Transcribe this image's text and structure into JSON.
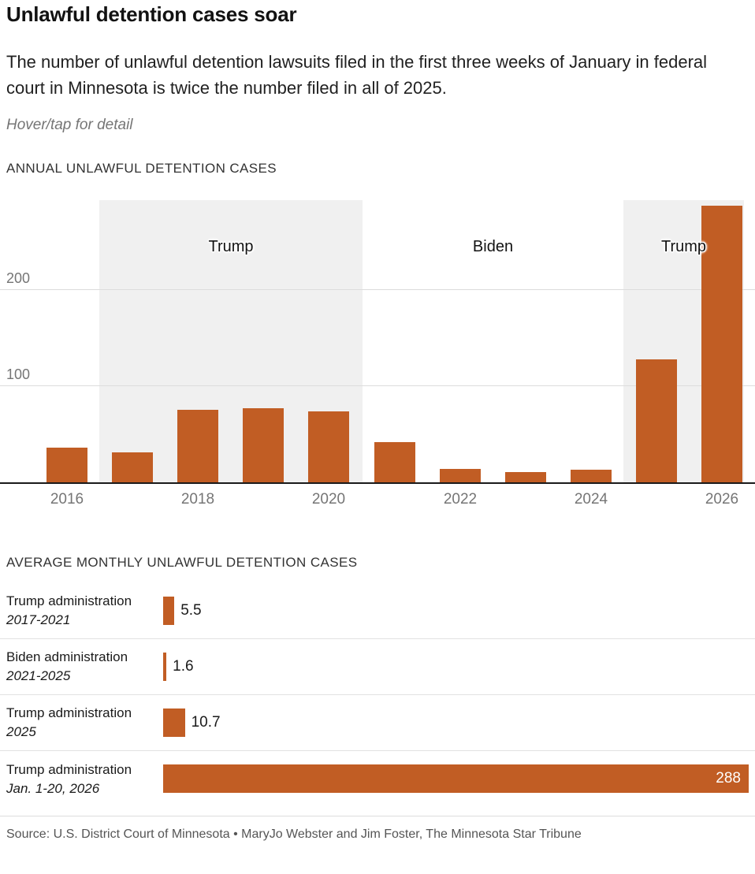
{
  "header": {
    "title": "Unlawful detention cases soar",
    "subtitle": "The number of unlawful detention lawsuits filed in the first three weeks of January in federal court in Minnesota is twice the number filed in all of 2025.",
    "hover_note": "Hover/tap for detail"
  },
  "chart_data": [
    {
      "type": "bar",
      "title": "ANNUAL UNLAWFUL DETENTION CASES",
      "categories": [
        "2016",
        "2017",
        "2018",
        "2019",
        "2020",
        "2021",
        "2022",
        "2023",
        "2024",
        "2025",
        "2026"
      ],
      "values": [
        36,
        31,
        75,
        77,
        74,
        42,
        14,
        11,
        13,
        128,
        288
      ],
      "x_tick_labels": [
        "2016",
        "2018",
        "2020",
        "2022",
        "2024",
        "2026"
      ],
      "y_ticks": [
        100,
        200
      ],
      "ylim": [
        0,
        295
      ],
      "grid": true,
      "annotations": [
        {
          "label": "Trump",
          "shaded": true
        },
        {
          "label": "Biden",
          "shaded": false
        },
        {
          "label": "Trump",
          "shaded": true
        }
      ]
    },
    {
      "type": "bar",
      "orientation": "horizontal",
      "title": "AVERAGE MONTHLY UNLAWFUL DETENTION CASES",
      "categories": [
        {
          "label": "Trump administration",
          "period": "2017-2021"
        },
        {
          "label": "Biden administration",
          "period": "2021-2025"
        },
        {
          "label": "Trump administration",
          "period": "2025"
        },
        {
          "label": "Trump administration",
          "period": "Jan. 1-20, 2026"
        }
      ],
      "values": [
        5.5,
        1.6,
        10.7,
        288
      ],
      "value_labels": [
        "5.5",
        "1.6",
        "10.7",
        "288"
      ],
      "value_label_inside": [
        false,
        false,
        false,
        true
      ],
      "xlim": [
        0,
        288
      ]
    }
  ],
  "footer": {
    "source": "Source: U.S. District Court of Minnesota • MaryJo Webster and Jim Foster, The Minnesota Star Tribune"
  },
  "colors": {
    "bar": "#c15d24",
    "band": "#f0f0f0",
    "gridline": "#dcdcdc",
    "axis": "#1a1a1a",
    "muted_text": "#757575"
  }
}
